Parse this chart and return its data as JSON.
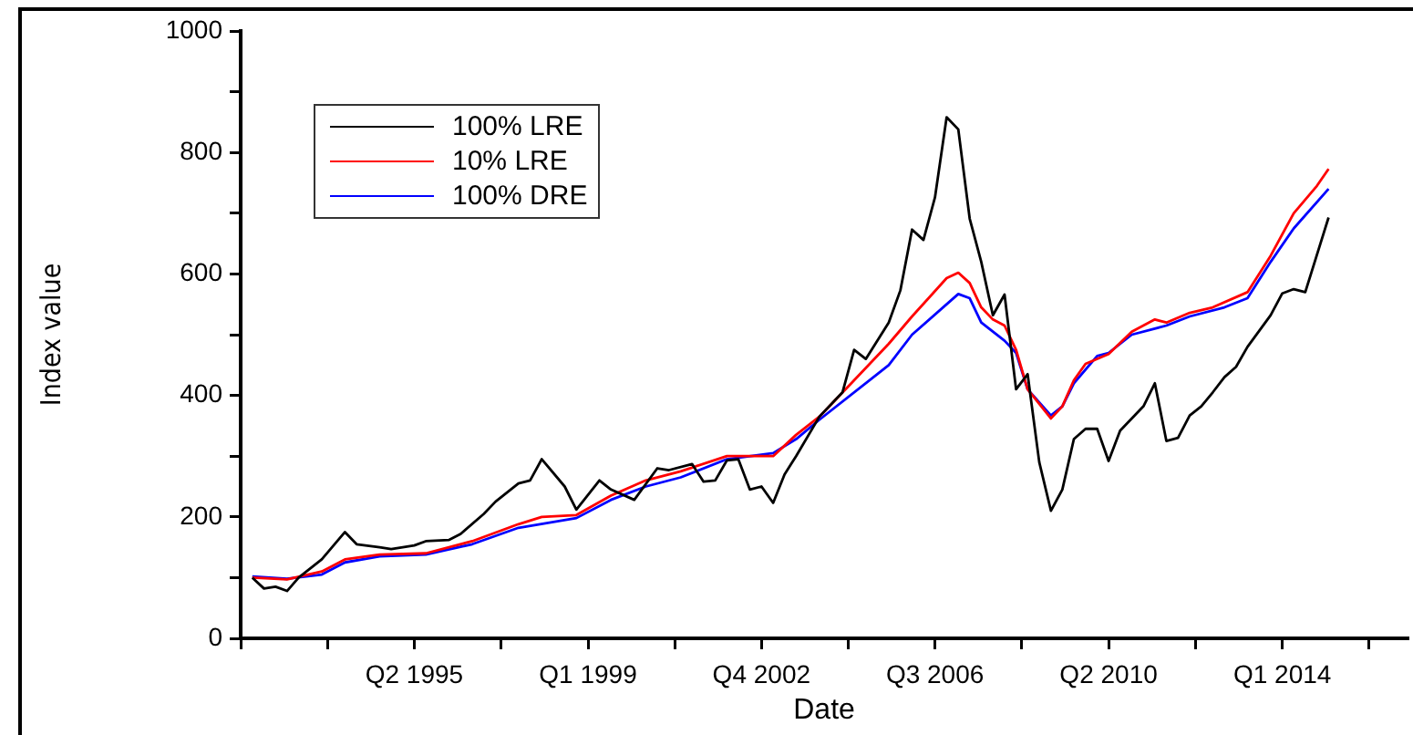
{
  "chart_data": {
    "type": "line",
    "xlabel": "Date",
    "ylabel": "Index value",
    "legend": "top left",
    "grid": false,
    "xlim": [
      "1991-07",
      "2016-09-15"
    ],
    "xticks": [
      {
        "value": "1991-07",
        "label": null
      },
      {
        "value": "1993-05-16",
        "label": null
      },
      {
        "value": "1995-04",
        "label": "Q2 1995"
      },
      {
        "value": "1997-02-15",
        "label": null
      },
      {
        "value": "1999-01",
        "label": "Q1 1999"
      },
      {
        "value": "2000-11-16",
        "label": null
      },
      {
        "value": "2002-10",
        "label": "Q4 2002"
      },
      {
        "value": "2004-08-16",
        "label": null
      },
      {
        "value": "2006-07",
        "label": "Q3 2006"
      },
      {
        "value": "2008-05-16",
        "label": null
      },
      {
        "value": "2010-04",
        "label": "Q2 2010"
      },
      {
        "value": "2012-02-15",
        "label": null
      },
      {
        "value": "2014-01",
        "label": "Q1 2014"
      },
      {
        "value": "2015-11-16",
        "label": null
      }
    ],
    "ylim": [
      0,
      1000
    ],
    "yticks": [
      0,
      {
        "value": 100,
        "label": null
      },
      200,
      {
        "value": 300,
        "label": null
      },
      400,
      {
        "value": 500,
        "label": null
      },
      600,
      {
        "value": 700,
        "label": null
      },
      800,
      {
        "value": 900,
        "label": null
      },
      1000
    ],
    "series": [
      {
        "name": "100% LRE",
        "color": "#000000",
        "x": [
          "1991-10",
          "1992-01",
          "1992-04",
          "1992-07",
          "1992-10",
          "1993-04",
          "1993-10",
          "1994-01",
          "1994-07",
          "1994-10",
          "1995-04",
          "1995-07",
          "1996-01",
          "1996-04",
          "1996-10",
          "1997-01",
          "1997-07",
          "1997-10",
          "1998-01",
          "1998-07",
          "1998-10",
          "1999-04",
          "1999-07",
          "2000-01",
          "2000-07",
          "2000-10",
          "2001-04",
          "2001-07",
          "2001-10",
          "2002-01",
          "2002-04",
          "2002-07",
          "2002-10",
          "2003-01",
          "2003-04",
          "2003-07",
          "2004-01",
          "2004-07",
          "2004-10",
          "2005-01",
          "2005-07",
          "2005-10",
          "2006-01",
          "2006-04",
          "2006-07",
          "2006-10",
          "2007-01",
          "2007-04",
          "2007-07",
          "2007-10",
          "2008-01",
          "2008-04",
          "2008-07",
          "2008-10",
          "2009-01",
          "2009-04",
          "2009-07",
          "2009-10",
          "2010-01",
          "2010-04",
          "2010-07",
          "2011-01",
          "2011-04",
          "2011-07",
          "2011-10",
          "2012-01",
          "2012-04",
          "2012-07",
          "2012-10",
          "2013-01",
          "2013-04",
          "2013-10",
          "2014-01",
          "2014-04",
          "2014-07",
          "2015-01"
        ],
        "values": [
          100,
          82,
          85,
          78,
          100,
          130,
          175,
          155,
          150,
          147,
          153,
          160,
          162,
          172,
          205,
          225,
          255,
          260,
          295,
          250,
          212,
          260,
          245,
          228,
          280,
          277,
          287,
          258,
          260,
          293,
          295,
          245,
          250,
          223,
          270,
          300,
          365,
          405,
          475,
          460,
          520,
          573,
          673,
          656,
          726,
          858,
          838,
          691,
          620,
          532,
          566,
          410,
          435,
          290,
          210,
          245,
          328,
          345,
          345,
          292,
          342,
          382,
          420,
          325,
          330,
          367,
          382,
          405,
          430,
          447,
          480,
          532,
          568,
          575,
          570,
          693
        ]
      },
      {
        "name": "10% LRE",
        "color": "#ff0000",
        "x": [
          "1991-10",
          "1992-07",
          "1993-04",
          "1993-10",
          "1994-07",
          "1995-07",
          "1996-07",
          "1997-07",
          "1998-01",
          "1998-10",
          "1999-07",
          "2000-04",
          "2001-01",
          "2002-01",
          "2003-01",
          "2003-07",
          "2004-01",
          "2004-10",
          "2005-07",
          "2006-01",
          "2006-10",
          "2007-01",
          "2007-04",
          "2007-07",
          "2007-10",
          "2008-01",
          "2008-04",
          "2008-07",
          "2009-01",
          "2009-04",
          "2009-07",
          "2009-10",
          "2010-04",
          "2010-10",
          "2011-04",
          "2011-07",
          "2012-01",
          "2012-07",
          "2013-04",
          "2013-10",
          "2014-04",
          "2014-10",
          "2015-01"
        ],
        "values": [
          100,
          97,
          110,
          130,
          138,
          140,
          160,
          188,
          200,
          203,
          235,
          260,
          275,
          300,
          300,
          335,
          365,
          425,
          485,
          530,
          593,
          602,
          585,
          545,
          525,
          515,
          475,
          410,
          362,
          382,
          425,
          452,
          468,
          505,
          525,
          520,
          536,
          545,
          570,
          630,
          700,
          745,
          773
        ]
      },
      {
        "name": "100% DRE",
        "color": "#0000ff",
        "x": [
          "1991-10",
          "1992-07",
          "1993-04",
          "1993-10",
          "1994-07",
          "1995-07",
          "1996-07",
          "1997-07",
          "1998-10",
          "1999-07",
          "2000-04",
          "2001-01",
          "2002-01",
          "2003-01",
          "2003-07",
          "2004-01",
          "2005-04",
          "2005-07",
          "2006-01",
          "2007-01",
          "2007-04",
          "2007-07",
          "2007-10",
          "2008-01",
          "2008-04",
          "2008-07",
          "2009-01",
          "2009-04",
          "2009-07",
          "2010-01",
          "2010-04",
          "2010-10",
          "2011-07",
          "2012-01",
          "2012-10",
          "2013-04",
          "2013-10",
          "2014-04",
          "2015-01"
        ],
        "values": [
          102,
          98,
          105,
          125,
          135,
          138,
          155,
          182,
          198,
          228,
          250,
          265,
          295,
          305,
          328,
          360,
          435,
          450,
          500,
          567,
          560,
          520,
          505,
          490,
          470,
          410,
          367,
          382,
          420,
          465,
          470,
          500,
          515,
          530,
          545,
          560,
          620,
          675,
          740
        ]
      }
    ]
  }
}
